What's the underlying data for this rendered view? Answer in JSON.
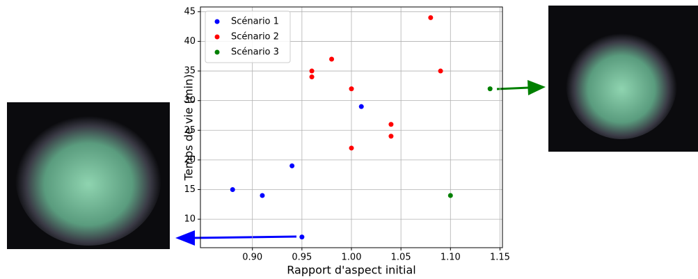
{
  "chart_data": {
    "type": "scatter",
    "x_label": "Rapport d'aspect initial",
    "y_label": "Temps de vie (min)",
    "xlim": [
      0.8475,
      1.1525
    ],
    "ylim": [
      5.2,
      45.8
    ],
    "xticks": [
      {
        "value": 0.9,
        "label": "0.90"
      },
      {
        "value": 0.95,
        "label": "0.95"
      },
      {
        "value": 1.0,
        "label": "1.00"
      },
      {
        "value": 1.05,
        "label": "1.05"
      },
      {
        "value": 1.1,
        "label": "1.10"
      },
      {
        "value": 1.15,
        "label": "1.15"
      }
    ],
    "yticks": [
      10,
      15,
      20,
      25,
      30,
      35,
      40,
      45
    ],
    "grid": true,
    "legend": "upper-left",
    "series": [
      {
        "name": "Scénario 1",
        "color": "#0000ff",
        "x": [
          0.88,
          0.91,
          0.94,
          1.01,
          0.95
        ],
        "values": [
          15,
          14,
          19,
          29,
          7
        ]
      },
      {
        "name": "Scénario 2",
        "color": "#ff0000",
        "x": [
          0.96,
          0.96,
          0.98,
          1.0,
          1.0,
          1.04,
          1.04,
          1.08,
          1.09
        ],
        "values": [
          35,
          34,
          37,
          32,
          22,
          26,
          24,
          44,
          35
        ]
      },
      {
        "name": "Scénario 3",
        "color": "#008000",
        "x": [
          1.1,
          1.14
        ],
        "values": [
          14,
          32
        ]
      }
    ]
  }
}
